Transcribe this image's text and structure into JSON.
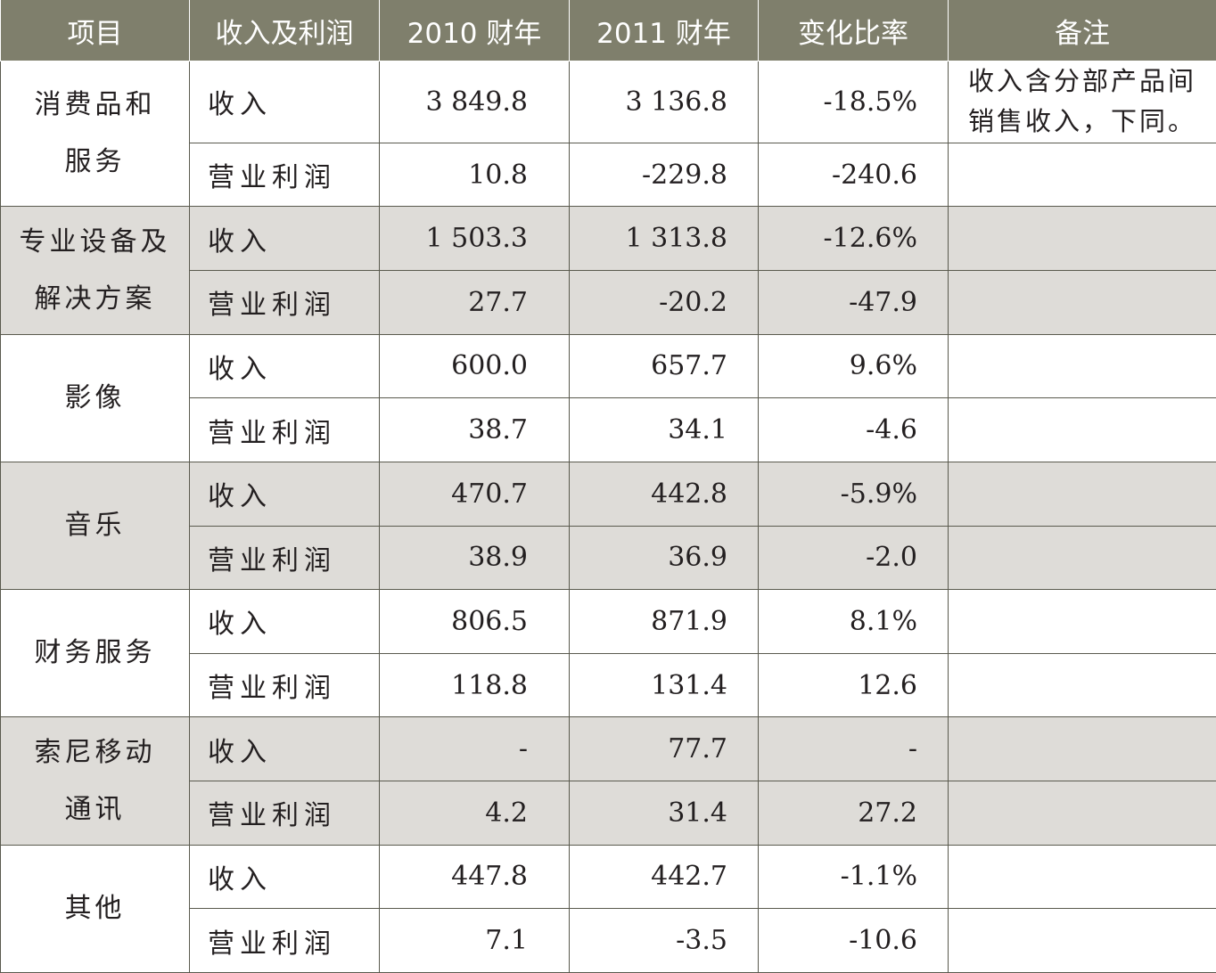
{
  "headers": [
    "项目",
    "收入及利润",
    "2010 财年",
    "2011 财年",
    "变化比率",
    "备注"
  ],
  "groups": [
    {
      "name_lines": [
        "消费品和",
        "服务"
      ],
      "shade": false,
      "rows": [
        {
          "metric": "收入",
          "v2010": "3 849.8",
          "v2011": "3 136.8",
          "change": "-18.5%",
          "note_lines": [
            "收入含分部产品间",
            "销售收入，下同。"
          ]
        },
        {
          "metric": "营业利润",
          "v2010": "10.8",
          "v2011": "-229.8",
          "change": "-240.6",
          "note_lines": []
        }
      ]
    },
    {
      "name_lines": [
        "专业设备及",
        "解决方案"
      ],
      "shade": true,
      "rows": [
        {
          "metric": "收入",
          "v2010": "1 503.3",
          "v2011": "1 313.8",
          "change": "-12.6%",
          "note_lines": []
        },
        {
          "metric": "营业利润",
          "v2010": "27.7",
          "v2011": "-20.2",
          "change": "-47.9",
          "note_lines": []
        }
      ]
    },
    {
      "name_lines": [
        "影像"
      ],
      "shade": false,
      "rows": [
        {
          "metric": "收入",
          "v2010": "600.0",
          "v2011": "657.7",
          "change": "9.6%",
          "note_lines": []
        },
        {
          "metric": "营业利润",
          "v2010": "38.7",
          "v2011": "34.1",
          "change": "-4.6",
          "note_lines": []
        }
      ]
    },
    {
      "name_lines": [
        "音乐"
      ],
      "shade": true,
      "rows": [
        {
          "metric": "收入",
          "v2010": "470.7",
          "v2011": "442.8",
          "change": "-5.9%",
          "note_lines": []
        },
        {
          "metric": "营业利润",
          "v2010": "38.9",
          "v2011": "36.9",
          "change": "-2.0",
          "note_lines": []
        }
      ]
    },
    {
      "name_lines": [
        "财务服务"
      ],
      "shade": false,
      "rows": [
        {
          "metric": "收入",
          "v2010": "806.5",
          "v2011": "871.9",
          "change": "8.1%",
          "note_lines": []
        },
        {
          "metric": "营业利润",
          "v2010": "118.8",
          "v2011": "131.4",
          "change": "12.6",
          "note_lines": []
        }
      ]
    },
    {
      "name_lines": [
        "索尼移动",
        "通讯"
      ],
      "shade": true,
      "rows": [
        {
          "metric": "收入",
          "v2010": "-",
          "v2011": "77.7",
          "change": "-",
          "note_lines": []
        },
        {
          "metric": "营业利润",
          "v2010": "4.2",
          "v2011": "31.4",
          "change": "27.2",
          "note_lines": []
        }
      ]
    },
    {
      "name_lines": [
        "其他"
      ],
      "shade": false,
      "rows": [
        {
          "metric": "收入",
          "v2010": "447.8",
          "v2011": "442.7",
          "change": "-1.1%",
          "note_lines": []
        },
        {
          "metric": "营业利润",
          "v2010": "7.1",
          "v2011": "-3.5",
          "change": "-10.6",
          "note_lines": []
        }
      ]
    }
  ]
}
